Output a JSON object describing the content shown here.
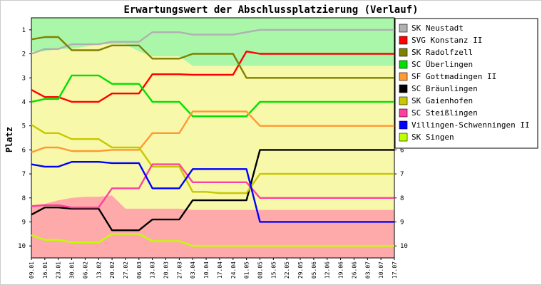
{
  "chart_data": {
    "type": "line",
    "title": "Erwartungswert der Abschlussplatzierung (Verlauf)",
    "ylabel": "Platz",
    "xlabel": "",
    "ylim": [
      0.5,
      10.5
    ],
    "y_inverted": true,
    "y_ticks": [
      "1",
      "2",
      "3",
      "4",
      "5",
      "6",
      "7",
      "8",
      "9",
      "10"
    ],
    "grid": false,
    "legend_position": "right",
    "x": [
      "09.01",
      "16.01",
      "23.01",
      "30.01",
      "06.02",
      "13.02",
      "20.02",
      "27.02",
      "06.03",
      "13.03",
      "20.03",
      "27.03",
      "03.04",
      "10.04",
      "17.04",
      "24.04",
      "01.05",
      "08.05",
      "15.05",
      "22.05",
      "29.05",
      "05.06",
      "12.06",
      "19.06",
      "26.06",
      "03.07",
      "10.07",
      "17.07"
    ],
    "zones": {
      "promotion": {
        "color": "#aaf7aa",
        "top": [
          1,
          1,
          1,
          1,
          1,
          1,
          1,
          1,
          1,
          1,
          1,
          1,
          1,
          1,
          1,
          1,
          1,
          1,
          1,
          1,
          1,
          1,
          1,
          1,
          1,
          1,
          1,
          1
        ],
        "bottom": [
          1.9,
          1.9,
          1.8,
          1.8,
          1.7,
          1.6,
          1.6,
          1.6,
          1.9,
          2.1,
          2.1,
          2.1,
          2.5,
          2.5,
          2.5,
          2.5,
          2.5,
          2.5,
          2.5,
          2.5,
          2.5,
          2.5,
          2.5,
          2.5,
          2.5,
          2.5,
          2.5,
          2.5
        ]
      },
      "middle": {
        "color": "#f8f8aa"
      },
      "relegation": {
        "color": "#ffaaaa",
        "top": [
          8.3,
          8.25,
          8.1,
          8.0,
          7.95,
          7.95,
          7.9,
          8.45,
          8.45,
          8.45,
          8.45,
          8.45,
          8.5,
          8.5,
          8.5,
          8.5,
          8.5,
          8.5,
          8.5,
          8.5,
          8.5,
          8.5,
          8.5,
          8.5,
          8.5,
          8.5,
          8.5,
          8.5
        ],
        "bottom": [
          10.5,
          10.5,
          10.5,
          10.5,
          10.5,
          10.5,
          10.5,
          10.5,
          10.5,
          10.5,
          10.5,
          10.5,
          10.5,
          10.5,
          10.5,
          10.5,
          10.5,
          10.5,
          10.5,
          10.5,
          10.5,
          10.5,
          10.5,
          10.5,
          10.5,
          10.5,
          10.5,
          10.5
        ]
      }
    },
    "series": [
      {
        "name": "SK Neustadt",
        "color": "#b0b0b0",
        "values": [
          2.0,
          1.8,
          1.8,
          1.6,
          1.6,
          1.6,
          1.5,
          1.5,
          1.5,
          1.1,
          1.1,
          1.1,
          1.2,
          1.2,
          1.2,
          1.2,
          1.1,
          1.0,
          1.0,
          1.0,
          1.0,
          1.0,
          1.0,
          1.0,
          1.0,
          1.0,
          1.0,
          1.0
        ]
      },
      {
        "name": "SVG Konstanz II",
        "color": "#ff0000",
        "values": [
          3.5,
          3.8,
          3.8,
          4.0,
          4.0,
          4.0,
          3.65,
          3.65,
          3.65,
          2.85,
          2.85,
          2.85,
          2.87,
          2.87,
          2.87,
          2.87,
          1.9,
          2.0,
          2.0,
          2.0,
          2.0,
          2.0,
          2.0,
          2.0,
          2.0,
          2.0,
          2.0,
          2.0
        ]
      },
      {
        "name": "SK Radolfzell",
        "color": "#808000",
        "values": [
          1.4,
          1.3,
          1.3,
          1.85,
          1.85,
          1.85,
          1.65,
          1.65,
          1.65,
          2.2,
          2.2,
          2.2,
          2.0,
          2.0,
          2.0,
          2.0,
          3.0,
          3.0,
          3.0,
          3.0,
          3.0,
          3.0,
          3.0,
          3.0,
          3.0,
          3.0,
          3.0,
          3.0
        ]
      },
      {
        "name": "SC Überlingen",
        "color": "#00e000",
        "values": [
          4.0,
          3.88,
          3.88,
          2.9,
          2.9,
          2.9,
          3.25,
          3.25,
          3.25,
          4.0,
          4.0,
          4.0,
          4.6,
          4.6,
          4.6,
          4.6,
          4.6,
          4.0,
          4.0,
          4.0,
          4.0,
          4.0,
          4.0,
          4.0,
          4.0,
          4.0,
          4.0,
          4.0
        ]
      },
      {
        "name": "SF Gottmadingen II",
        "color": "#ff9933",
        "values": [
          6.1,
          5.9,
          5.9,
          6.05,
          6.05,
          6.05,
          6.0,
          6.0,
          6.0,
          5.3,
          5.3,
          5.3,
          4.4,
          4.4,
          4.4,
          4.4,
          4.4,
          5.0,
          5.0,
          5.0,
          5.0,
          5.0,
          5.0,
          5.0,
          5.0,
          5.0,
          5.0,
          5.0
        ]
      },
      {
        "name": "SC Bräunlingen",
        "color": "#000000",
        "values": [
          8.7,
          8.4,
          8.4,
          8.45,
          8.45,
          8.45,
          9.35,
          9.35,
          9.35,
          8.9,
          8.9,
          8.9,
          8.1,
          8.1,
          8.1,
          8.1,
          8.1,
          6.0,
          6.0,
          6.0,
          6.0,
          6.0,
          6.0,
          6.0,
          6.0,
          6.0,
          6.0,
          6.0
        ]
      },
      {
        "name": "SK Gaienhofen",
        "color": "#c8c800",
        "values": [
          4.95,
          5.3,
          5.3,
          5.55,
          5.55,
          5.55,
          5.9,
          5.9,
          5.9,
          6.7,
          6.7,
          6.7,
          7.75,
          7.75,
          7.8,
          7.8,
          7.8,
          7.0,
          7.0,
          7.0,
          7.0,
          7.0,
          7.0,
          7.0,
          7.0,
          7.0,
          7.0,
          7.0
        ]
      },
      {
        "name": "SC Steißlingen",
        "color": "#ff40a0",
        "values": [
          8.35,
          8.3,
          8.3,
          8.4,
          8.4,
          8.4,
          7.6,
          7.6,
          7.6,
          6.6,
          6.6,
          6.6,
          7.35,
          7.35,
          7.35,
          7.35,
          7.35,
          8.0,
          8.0,
          8.0,
          8.0,
          8.0,
          8.0,
          8.0,
          8.0,
          8.0,
          8.0,
          8.0
        ]
      },
      {
        "name": "Villingen-Schwenningen II",
        "color": "#0000ff",
        "values": [
          6.6,
          6.7,
          6.7,
          6.5,
          6.5,
          6.5,
          6.55,
          6.55,
          6.55,
          7.6,
          7.6,
          7.6,
          6.8,
          6.8,
          6.8,
          6.8,
          6.8,
          9.0,
          9.0,
          9.0,
          9.0,
          9.0,
          9.0,
          9.0,
          9.0,
          9.0,
          9.0,
          9.0
        ]
      },
      {
        "name": "SK Singen",
        "color": "#c0ff00",
        "values": [
          9.55,
          9.75,
          9.75,
          9.85,
          9.85,
          9.85,
          9.5,
          9.5,
          9.5,
          9.8,
          9.8,
          9.8,
          10.0,
          10.0,
          10.0,
          10.0,
          10.0,
          10.0,
          10.0,
          10.0,
          10.0,
          10.0,
          10.0,
          10.0,
          10.0,
          10.0,
          10.0,
          10.0
        ]
      }
    ]
  }
}
